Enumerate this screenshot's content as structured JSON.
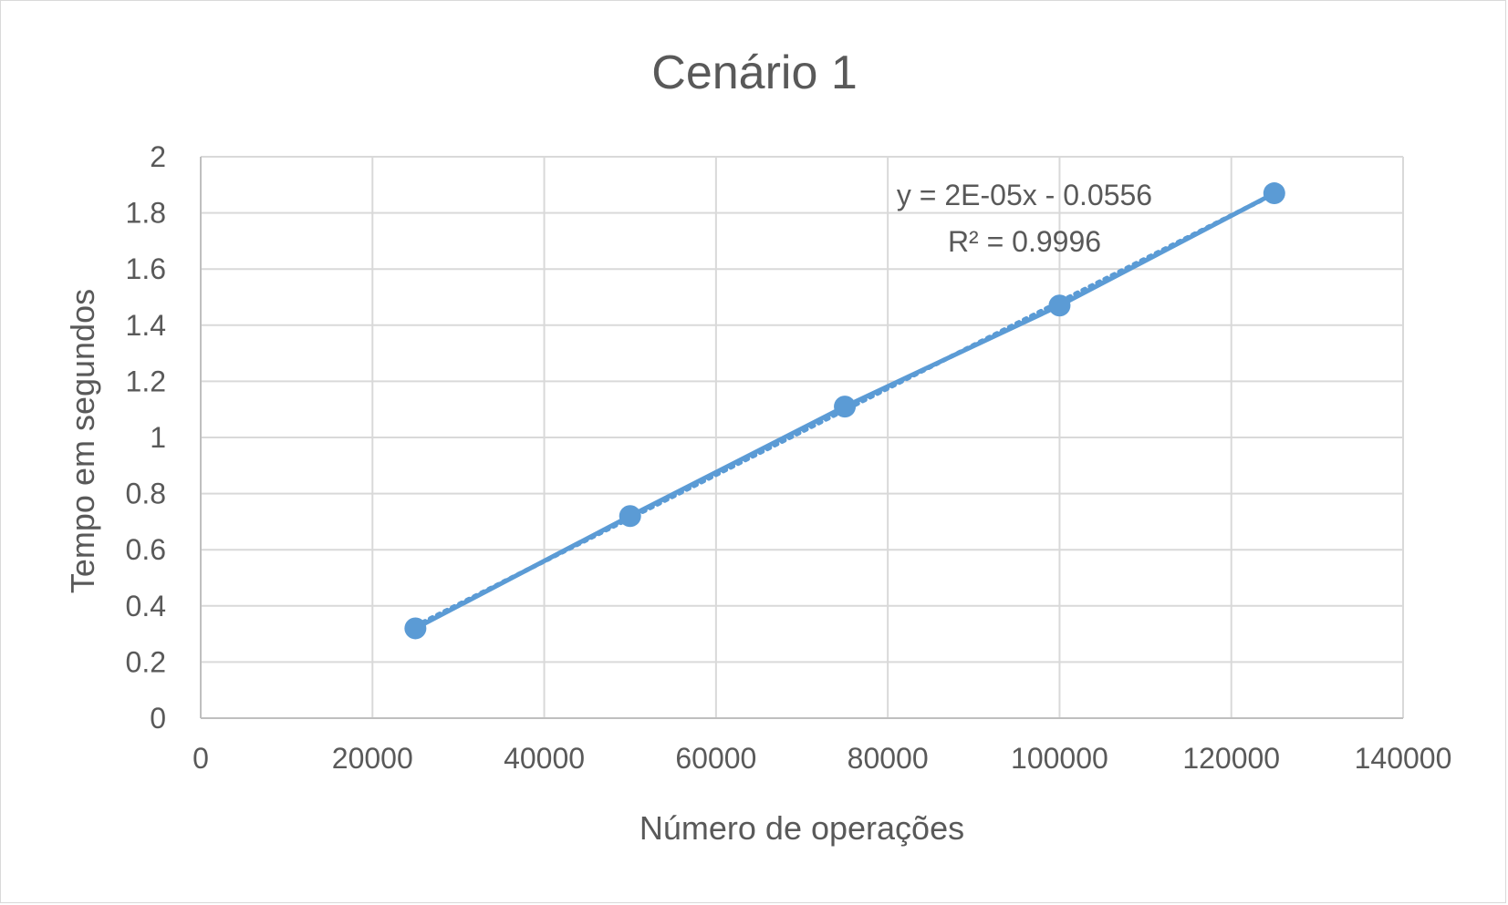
{
  "chart_data": {
    "type": "scatter",
    "title": "Cenário 1",
    "xlabel": "Número de operações",
    "ylabel": "Tempo em segundos",
    "xlim": [
      0,
      140000
    ],
    "ylim": [
      0,
      2
    ],
    "x_ticks": [
      "0",
      "20000",
      "40000",
      "60000",
      "80000",
      "100000",
      "120000",
      "140000"
    ],
    "y_ticks": [
      "0",
      "0.2",
      "0.4",
      "0.6",
      "0.8",
      "1",
      "1.2",
      "1.4",
      "1.6",
      "1.8",
      "2"
    ],
    "grid": true,
    "legend": "none",
    "series": [
      {
        "x": [
          25000,
          50000,
          75000,
          100000,
          125000
        ],
        "y": [
          0.32,
          0.72,
          1.11,
          1.47,
          1.87
        ],
        "color": "#5b9bd5",
        "connected": true
      }
    ],
    "trendline": {
      "style": "dotted",
      "equation": "y = 2E-05x - 0.0556",
      "r_squared": "R² = 0.9996"
    }
  }
}
